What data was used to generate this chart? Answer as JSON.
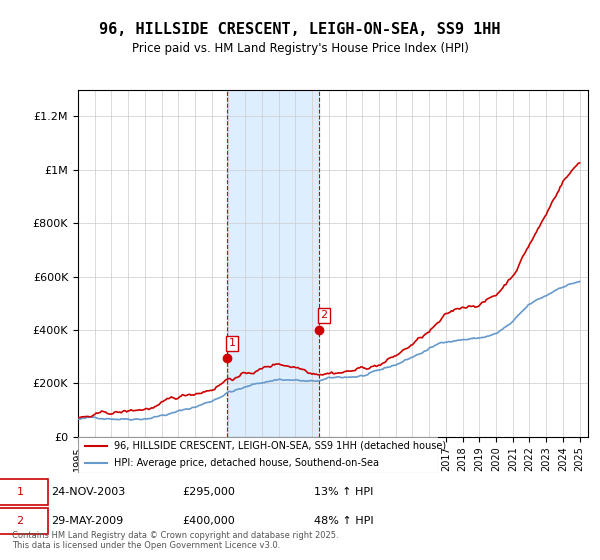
{
  "title": "96, HILLSIDE CRESCENT, LEIGH-ON-SEA, SS9 1HH",
  "subtitle": "Price paid vs. HM Land Registry's House Price Index (HPI)",
  "ylabel_ticks": [
    "£0",
    "£200K",
    "£400K",
    "£600K",
    "£800K",
    "£1M",
    "£1.2M"
  ],
  "ylim": [
    0,
    1300000
  ],
  "yticks": [
    0,
    200000,
    400000,
    600000,
    800000,
    1000000,
    1200000
  ],
  "xlim_start": 1995.0,
  "xlim_end": 2025.5,
  "legend_line1": "96, HILLSIDE CRESCENT, LEIGH-ON-SEA, SS9 1HH (detached house)",
  "legend_line2": "HPI: Average price, detached house, Southend-on-Sea",
  "sale1_date": "24-NOV-2003",
  "sale1_price": "£295,000",
  "sale1_hpi": "13% ↑ HPI",
  "sale1_x": 2003.9,
  "sale1_y": 295000,
  "sale2_date": "29-MAY-2009",
  "sale2_price": "£400,000",
  "sale2_hpi": "48% ↑ HPI",
  "sale2_x": 2009.4,
  "sale2_y": 400000,
  "shade_x1": 2003.9,
  "shade_x2": 2009.4,
  "line_color": "#cc0000",
  "hpi_color": "#6699cc",
  "shade_color": "#ddeeff",
  "footer": "Contains HM Land Registry data © Crown copyright and database right 2025.\nThis data is licensed under the Open Government Licence v3.0.",
  "years": [
    1995,
    1996,
    1997,
    1998,
    1999,
    2000,
    2001,
    2002,
    2003,
    2004,
    2005,
    2006,
    2007,
    2008,
    2009,
    2010,
    2011,
    2012,
    2013,
    2014,
    2015,
    2016,
    2017,
    2018,
    2019,
    2020,
    2021,
    2022,
    2023,
    2024,
    2025
  ],
  "hpi_values": [
    65000,
    68000,
    72000,
    75000,
    82000,
    95000,
    108000,
    125000,
    148000,
    185000,
    200000,
    218000,
    232000,
    230000,
    220000,
    228000,
    232000,
    238000,
    248000,
    270000,
    300000,
    330000,
    360000,
    370000,
    375000,
    390000,
    430000,
    490000,
    520000,
    560000,
    580000
  ],
  "price_values": [
    68000,
    72000,
    76000,
    80000,
    90000,
    104000,
    120000,
    140000,
    165000,
    210000,
    225000,
    245000,
    265000,
    260000,
    248000,
    260000,
    268000,
    278000,
    295000,
    325000,
    368000,
    410000,
    460000,
    490000,
    510000,
    540000,
    620000,
    740000,
    850000,
    980000,
    1050000
  ]
}
